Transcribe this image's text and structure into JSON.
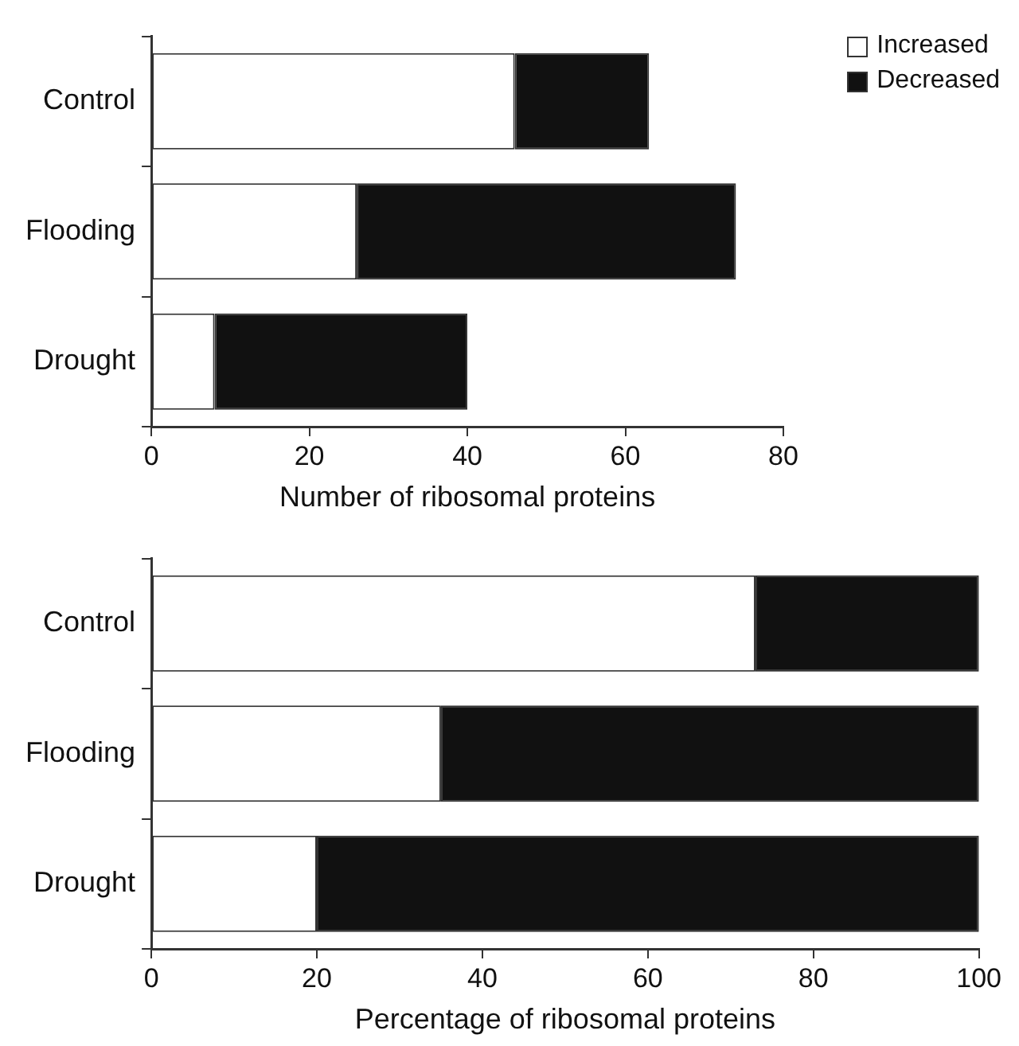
{
  "chart_data": [
    {
      "type": "bar",
      "orientation": "horizontal",
      "stacked": true,
      "categories": [
        "Control",
        "Flooding",
        "Drought"
      ],
      "xlabel": "Number of ribosomal proteins",
      "xlim": [
        0,
        80
      ],
      "xticks": [
        0,
        20,
        40,
        60,
        80
      ],
      "legend": "top right",
      "series": [
        {
          "name": "Increased",
          "color": "#ffffff",
          "values": [
            46,
            26,
            8
          ]
        },
        {
          "name": "Decreased",
          "color": "#111111",
          "values": [
            17,
            48,
            32
          ]
        }
      ]
    },
    {
      "type": "bar",
      "orientation": "horizontal",
      "stacked": true,
      "categories": [
        "Control",
        "Flooding",
        "Drought"
      ],
      "xlabel": "Percentage of ribosomal proteins",
      "xlim": [
        0,
        100
      ],
      "xticks": [
        0,
        20,
        40,
        60,
        80,
        100
      ],
      "series": [
        {
          "color": "#ffffff",
          "values": [
            73,
            35,
            20
          ]
        },
        {
          "color": "#111111",
          "values": [
            27,
            65,
            80
          ]
        }
      ]
    }
  ]
}
